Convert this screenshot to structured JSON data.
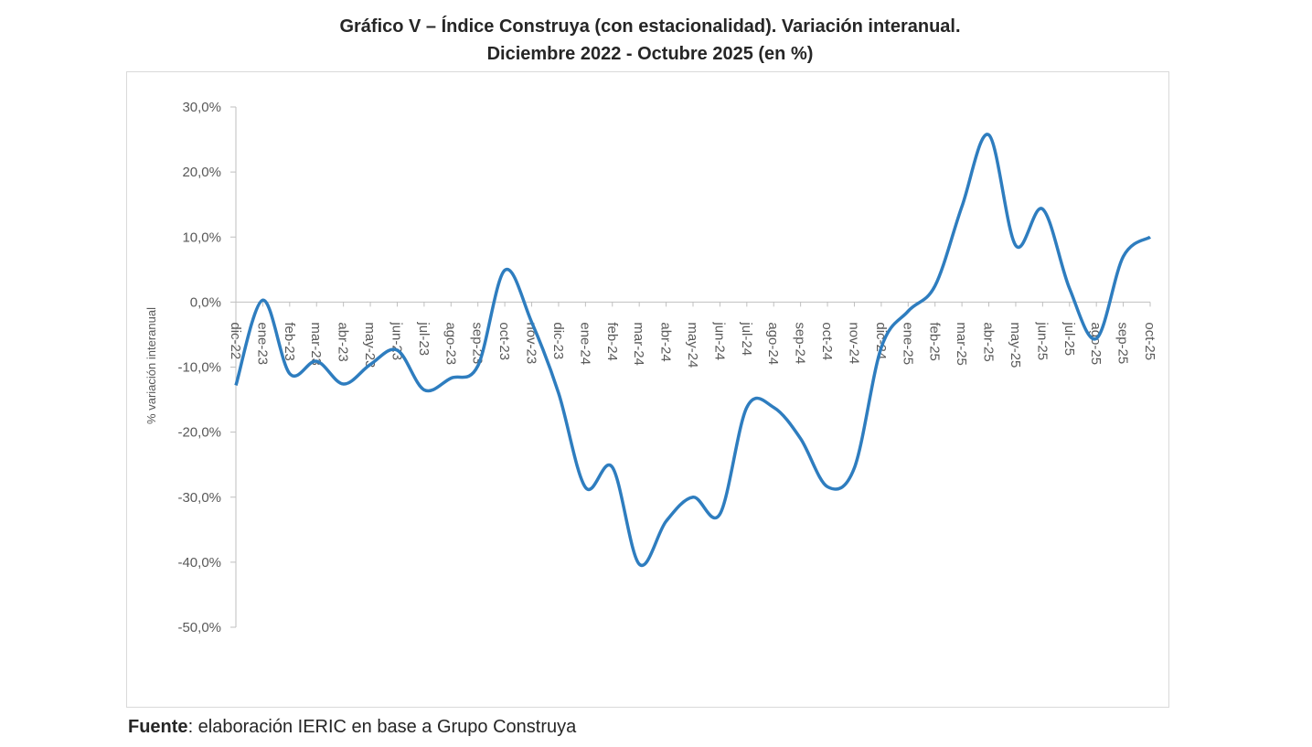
{
  "chart_data": {
    "type": "line",
    "title": "Gráfico V – Índice Construya (con estacionalidad). Variación interanual.",
    "subtitle": "Diciembre 2022 - Octubre 2025 (en %)",
    "y_label": "% variación interanual",
    "source_label": "Fuente",
    "source_text": ": elaboración IERIC en base a Grupo Construya",
    "categories": [
      "dic-22",
      "ene-23",
      "feb-23",
      "mar-23",
      "abr-23",
      "may-23",
      "jun-23",
      "jul-23",
      "ago-23",
      "sep-23",
      "oct-23",
      "nov-23",
      "dic-23",
      "ene-24",
      "feb-24",
      "mar-24",
      "abr-24",
      "may-24",
      "jun-24",
      "jul-24",
      "ago-24",
      "sep-24",
      "oct-24",
      "nov-24",
      "dic-24",
      "ene-25",
      "feb-25",
      "mar-25",
      "abr-25",
      "may-25",
      "jun-25",
      "jul-25",
      "ago-25",
      "sep-25",
      "oct-25"
    ],
    "series": [
      {
        "name": "Índice Construya",
        "color": "#2e7dbf",
        "values": [
          -12.8,
          0.3,
          -11,
          -9.1,
          -12.6,
          -9.6,
          -7.4,
          -13.5,
          -11.7,
          -9.8,
          4.9,
          -3.1,
          -14,
          -28.5,
          -25.4,
          -40.3,
          -33.7,
          -30,
          -32.6,
          -16.2,
          -16.2,
          -21,
          -28.4,
          -25.5,
          -7,
          -1.4,
          2.5,
          14.7,
          25.7,
          8.7,
          14.3,
          2.1,
          -5.6,
          7,
          10
        ]
      }
    ],
    "ylim": [
      -50,
      30
    ],
    "yticks": [
      {
        "value": -50,
        "label": "-50,0%"
      },
      {
        "value": -40,
        "label": "-40,0%"
      },
      {
        "value": -30,
        "label": "-30,0%"
      },
      {
        "value": -20,
        "label": "-20,0%"
      },
      {
        "value": -10,
        "label": "-10,0%"
      },
      {
        "value": 0,
        "label": "0,0%"
      },
      {
        "value": 10,
        "label": "10,0%"
      },
      {
        "value": 20,
        "label": "20,0%"
      },
      {
        "value": 30,
        "label": "30,0%"
      }
    ]
  }
}
